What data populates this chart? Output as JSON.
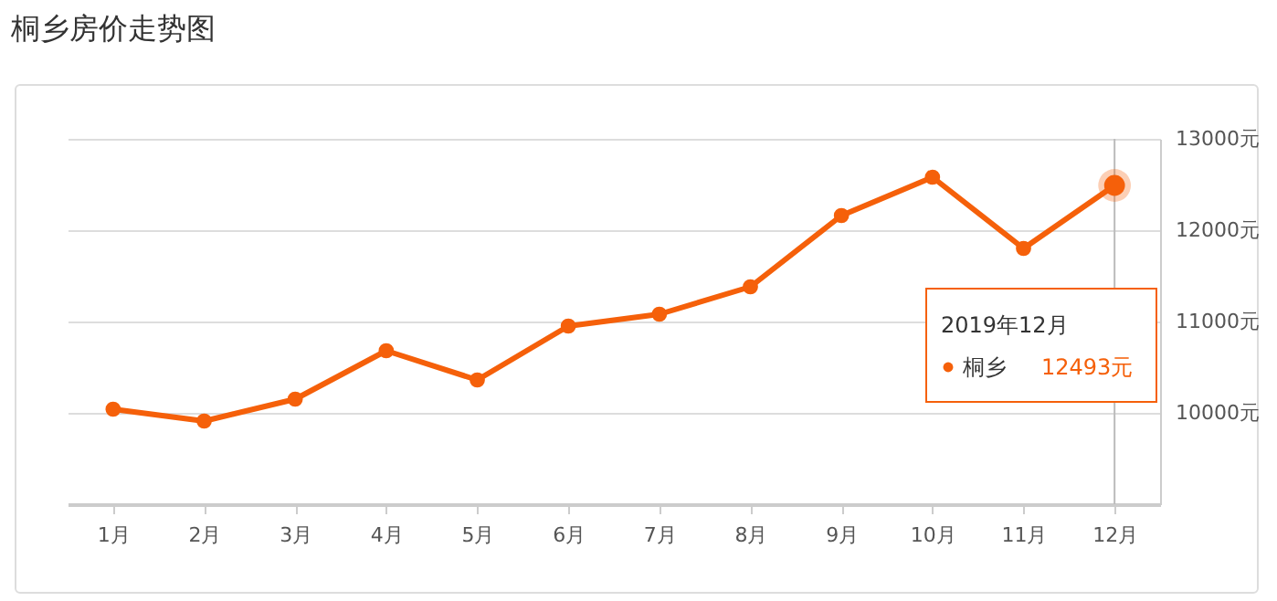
{
  "chart_data": {
    "type": "line",
    "title": "桐乡房价走势图",
    "categories": [
      "1月",
      "2月",
      "3月",
      "4月",
      "5月",
      "6月",
      "7月",
      "8月",
      "9月",
      "10月",
      "11月",
      "12月"
    ],
    "series": [
      {
        "name": "桐乡",
        "color": "#f5600a",
        "values": [
          10040,
          9910,
          10150,
          10680,
          10360,
          10950,
          11080,
          11380,
          12160,
          12580,
          11800,
          12490
        ]
      }
    ],
    "ylim": [
      9000,
      13000
    ],
    "yticks": [
      {
        "value": 10000,
        "label": "10000元"
      },
      {
        "value": 11000,
        "label": "11000元"
      },
      {
        "value": 12000,
        "label": "12000元"
      },
      {
        "value": 13000,
        "label": "13000元"
      }
    ],
    "grid": "y",
    "marker": "circle",
    "line_style": "solid",
    "ref_lines": [
      {
        "axis": "x",
        "value": "12月",
        "color": "#bbbbbb"
      }
    ],
    "annotations": [
      "2019年12月",
      "12493元"
    ]
  }
}
